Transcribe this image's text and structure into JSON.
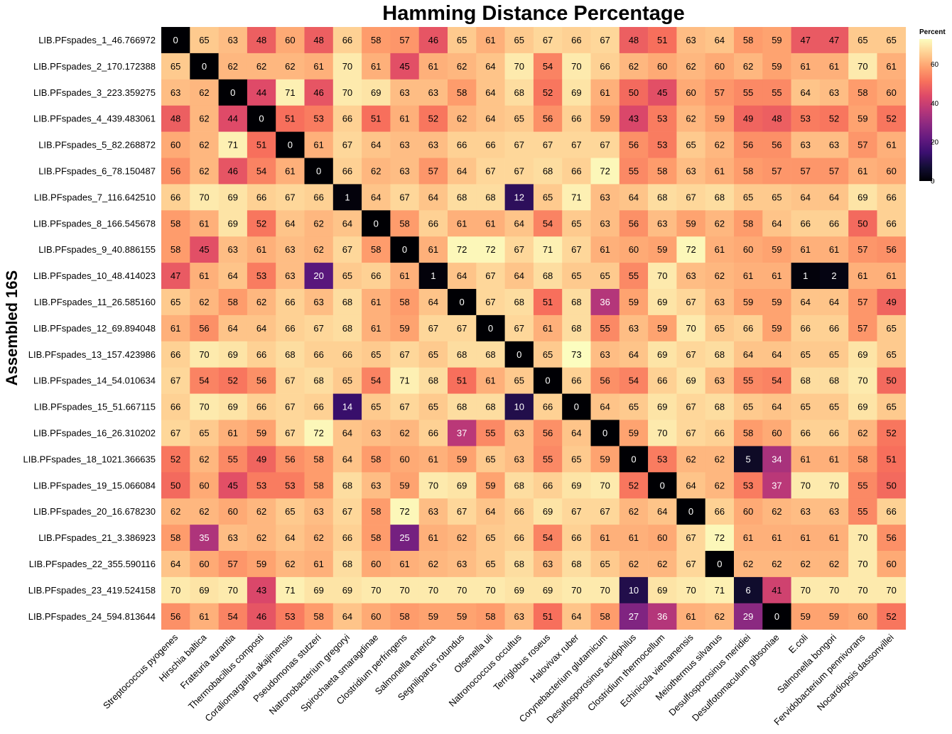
{
  "chart_data": {
    "type": "heatmap",
    "title": "Hamming Distance Percentage",
    "ylabel": "Assembled 16S",
    "xlabel": "",
    "legend": {
      "title": "Percent",
      "placement": "top-right",
      "ticks": [
        0,
        20,
        40,
        60
      ],
      "range": [
        0,
        73
      ]
    },
    "colormap": "magma",
    "rows": [
      "LIB.PFspades_1_46.766972",
      "LIB.PFspades_2_170.172388",
      "LIB.PFspades_3_223.359275",
      "LIB.PFspades_4_439.483061",
      "LIB.PFspades_5_82.268872",
      "LIB.PFspades_6_78.150487",
      "LIB.PFspades_7_116.642510",
      "LIB.PFspades_8_166.545678",
      "LIB.PFspades_9_40.886155",
      "LIB.PFspades_10_48.414023",
      "LIB.PFspades_11_26.585160",
      "LIB.PFspades_12_69.894048",
      "LIB.PFspades_13_157.423986",
      "LIB.PFspades_14_54.010634",
      "LIB.PFspades_15_51.667115",
      "LIB.PFspades_16_26.310202",
      "LIB.PFspades_18_1021.366635",
      "LIB.PFspades_19_15.066084",
      "LIB.PFspades_20_16.678230",
      "LIB.PFspades_21_3.386923",
      "LIB.PFspades_22_355.590116",
      "LIB.PFspades_23_419.524158",
      "LIB.PFspades_24_594.813644"
    ],
    "columns": [
      "Streptococcus pyogenes",
      "Hirschia baltica",
      "Frateuria aurantia",
      "Thermobacillus composti",
      "Coraliomargarita akajimensis",
      "Pseudomonas stutzeri",
      "Natronobacterium gregoryi",
      "Spirochaeta smaragdinae",
      "Clostridium perfringens",
      "Salmonella enterica",
      "Segniliparus rotundus",
      "Olsenella uli",
      "Natronococcus occultus",
      "Terriglobus roseus",
      "Halovivax ruber",
      "Corynebacterium glutamicum",
      "Desulfosporosinus acidiphilus",
      "Clostridium thermocellum",
      "Echinicola vietnamensis",
      "Meiothermus silvanus",
      "Desulfosporosinus meridiei",
      "Desulfotomaculum gibsoniae",
      "E.coli",
      "Salmonella bongori",
      "Fervidobacterium pennivorans",
      "Nocardiopsis dassonvillei"
    ],
    "values": [
      [
        0,
        65,
        63,
        48,
        60,
        48,
        66,
        58,
        57,
        46,
        65,
        61,
        65,
        67,
        66,
        67,
        48,
        51,
        63,
        64,
        58,
        59,
        47,
        47,
        65,
        65
      ],
      [
        65,
        0,
        62,
        62,
        62,
        61,
        70,
        61,
        45,
        61,
        62,
        64,
        70,
        54,
        70,
        66,
        62,
        60,
        62,
        60,
        62,
        59,
        61,
        61,
        70,
        61
      ],
      [
        63,
        62,
        0,
        44,
        71,
        46,
        70,
        69,
        63,
        63,
        58,
        64,
        68,
        52,
        69,
        61,
        50,
        45,
        60,
        57,
        55,
        55,
        64,
        63,
        58,
        60
      ],
      [
        48,
        62,
        44,
        0,
        51,
        53,
        66,
        51,
        61,
        52,
        62,
        64,
        65,
        56,
        66,
        59,
        43,
        53,
        62,
        59,
        49,
        48,
        53,
        52,
        59,
        52
      ],
      [
        60,
        62,
        71,
        51,
        0,
        61,
        67,
        64,
        63,
        63,
        66,
        66,
        67,
        67,
        67,
        67,
        56,
        53,
        65,
        62,
        56,
        56,
        63,
        63,
        57,
        61
      ],
      [
        56,
        62,
        46,
        54,
        61,
        0,
        66,
        62,
        63,
        57,
        64,
        67,
        67,
        68,
        66,
        72,
        55,
        58,
        63,
        61,
        58,
        57,
        57,
        57,
        61,
        60
      ],
      [
        66,
        70,
        69,
        66,
        67,
        66,
        1,
        64,
        67,
        64,
        68,
        68,
        12,
        65,
        71,
        63,
        64,
        68,
        67,
        68,
        65,
        65,
        64,
        64,
        69,
        66
      ],
      [
        58,
        61,
        69,
        52,
        64,
        62,
        64,
        0,
        58,
        66,
        61,
        61,
        64,
        54,
        65,
        63,
        56,
        63,
        59,
        62,
        58,
        64,
        66,
        66,
        50,
        66
      ],
      [
        58,
        45,
        63,
        61,
        63,
        62,
        67,
        58,
        0,
        61,
        72,
        72,
        67,
        71,
        67,
        61,
        60,
        59,
        72,
        61,
        60,
        59,
        61,
        61,
        57,
        56
      ],
      [
        47,
        61,
        64,
        53,
        63,
        20,
        65,
        66,
        61,
        1,
        64,
        67,
        64,
        68,
        65,
        65,
        55,
        70,
        63,
        62,
        61,
        61,
        1,
        2,
        61,
        61
      ],
      [
        65,
        62,
        58,
        62,
        66,
        63,
        68,
        61,
        58,
        64,
        0,
        67,
        68,
        51,
        68,
        36,
        59,
        69,
        67,
        63,
        59,
        59,
        64,
        64,
        57,
        49
      ],
      [
        61,
        56,
        64,
        64,
        66,
        67,
        68,
        61,
        59,
        67,
        67,
        0,
        67,
        61,
        68,
        55,
        63,
        59,
        70,
        65,
        66,
        59,
        66,
        66,
        57,
        65
      ],
      [
        66,
        70,
        69,
        66,
        68,
        66,
        66,
        65,
        67,
        65,
        68,
        68,
        0,
        65,
        73,
        63,
        64,
        69,
        67,
        68,
        64,
        64,
        65,
        65,
        69,
        65
      ],
      [
        67,
        54,
        52,
        56,
        67,
        68,
        65,
        54,
        71,
        68,
        51,
        61,
        65,
        0,
        66,
        56,
        54,
        66,
        69,
        63,
        55,
        54,
        68,
        68,
        70,
        50
      ],
      [
        66,
        70,
        69,
        66,
        67,
        66,
        14,
        65,
        67,
        65,
        68,
        68,
        10,
        66,
        0,
        64,
        65,
        69,
        67,
        68,
        65,
        64,
        65,
        65,
        69,
        65
      ],
      [
        67,
        65,
        61,
        59,
        67,
        72,
        64,
        63,
        62,
        66,
        37,
        55,
        63,
        56,
        64,
        0,
        59,
        70,
        67,
        66,
        58,
        60,
        66,
        66,
        62,
        52
      ],
      [
        52,
        62,
        55,
        49,
        56,
        58,
        64,
        58,
        60,
        61,
        59,
        65,
        63,
        55,
        65,
        59,
        0,
        53,
        62,
        62,
        5,
        34,
        61,
        61,
        58,
        51
      ],
      [
        50,
        60,
        45,
        53,
        53,
        58,
        68,
        63,
        59,
        70,
        69,
        59,
        68,
        66,
        69,
        70,
        52,
        0,
        64,
        62,
        53,
        37,
        70,
        70,
        55,
        50
      ],
      [
        62,
        62,
        60,
        62,
        65,
        63,
        67,
        58,
        72,
        63,
        67,
        64,
        66,
        69,
        67,
        67,
        62,
        64,
        0,
        66,
        60,
        62,
        63,
        63,
        55,
        66
      ],
      [
        58,
        35,
        63,
        62,
        64,
        62,
        66,
        58,
        25,
        61,
        62,
        65,
        66,
        54,
        66,
        61,
        61,
        60,
        67,
        72,
        61,
        61,
        61,
        61,
        70,
        56
      ],
      [
        64,
        60,
        57,
        59,
        62,
        61,
        68,
        60,
        61,
        62,
        63,
        65,
        68,
        63,
        68,
        65,
        62,
        62,
        67,
        0,
        62,
        62,
        62,
        62,
        70,
        60
      ],
      [
        70,
        69,
        70,
        43,
        71,
        69,
        69,
        70,
        70,
        70,
        70,
        70,
        69,
        69,
        70,
        70,
        10,
        69,
        70,
        71,
        6,
        41,
        70,
        70,
        70,
        70
      ],
      [
        56,
        61,
        54,
        46,
        53,
        58,
        64,
        60,
        58,
        59,
        59,
        58,
        63,
        51,
        64,
        58,
        27,
        36,
        61,
        62,
        29,
        0,
        59,
        59,
        60,
        52
      ]
    ]
  }
}
